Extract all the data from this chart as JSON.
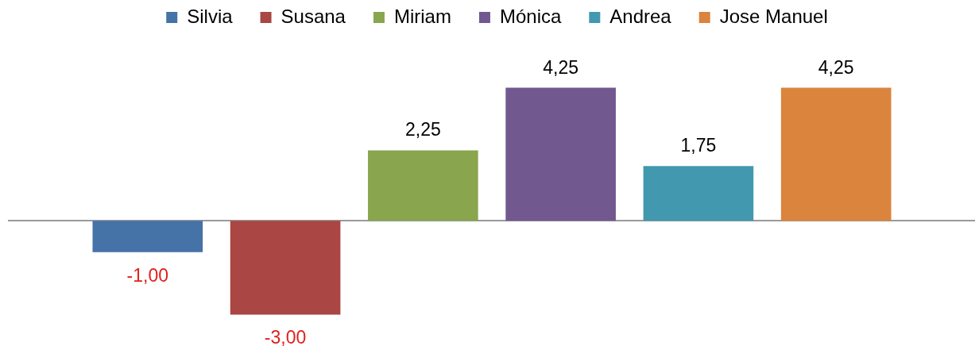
{
  "chart_data": {
    "type": "bar",
    "categories": [
      null
    ],
    "series": [
      {
        "name": "Silvia",
        "color": "#4572a7",
        "values": [
          -1
        ],
        "value_labels": [
          "-1,00"
        ]
      },
      {
        "name": "Susana",
        "color": "#aa4643",
        "values": [
          -3
        ],
        "value_labels": [
          "-3,00"
        ]
      },
      {
        "name": "Miriam",
        "color": "#89a54e",
        "values": [
          2.25
        ],
        "value_labels": [
          "2,25"
        ]
      },
      {
        "name": "Mónica",
        "color": "#71588f",
        "values": [
          4.25
        ],
        "value_labels": [
          "4,25"
        ]
      },
      {
        "name": "Andrea",
        "color": "#4198af",
        "values": [
          1.75
        ],
        "value_labels": [
          "1,75"
        ]
      },
      {
        "name": "Jose Manuel",
        "color": "#db843d",
        "values": [
          4.25
        ],
        "value_labels": [
          "4,25"
        ]
      }
    ],
    "legend": "top",
    "tick_labels": false
  }
}
